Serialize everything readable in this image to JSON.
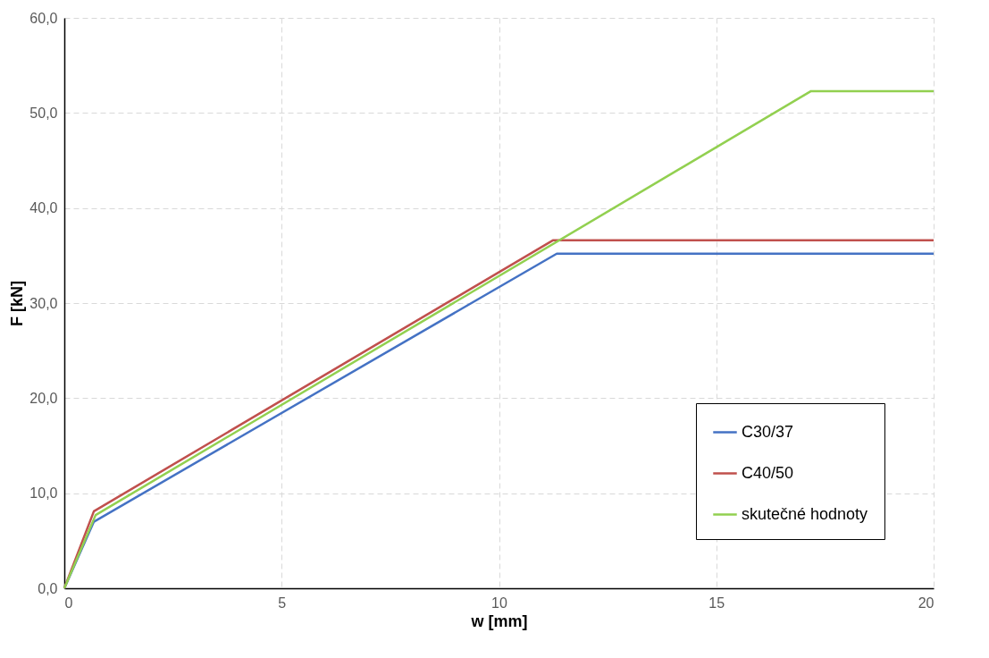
{
  "chart_data": {
    "type": "line",
    "xlabel": "w [mm]",
    "ylabel": "F [kN]",
    "xlim": [
      0,
      20
    ],
    "xticks": [
      0,
      5,
      10,
      15,
      20
    ],
    "ylim": [
      0,
      60
    ],
    "yticks": [
      {
        "value": 0,
        "label": "0,0"
      },
      {
        "value": 10,
        "label": "10,0"
      },
      {
        "value": 20,
        "label": "20,0"
      },
      {
        "value": 30,
        "label": "30,0"
      },
      {
        "value": 40,
        "label": "40,0"
      },
      {
        "value": 50,
        "label": "50,0"
      },
      {
        "value": 60,
        "label": "60,0"
      }
    ],
    "grid": true,
    "legend": "bottom right",
    "marker": "none",
    "line_style": "solid",
    "series": [
      {
        "name": "C30/37",
        "color": "#4472c4",
        "x": [
          0,
          0.68,
          11.33,
          20
        ],
        "values": [
          0,
          7.0,
          35.2,
          35.2
        ]
      },
      {
        "name": "C40/50",
        "color": "#c0504d",
        "x": [
          0,
          0.68,
          11.24,
          20
        ],
        "values": [
          0,
          8.1,
          36.6,
          36.6
        ]
      },
      {
        "name": "skutečné hodnoty",
        "color": "#92d050",
        "x": [
          0,
          0.72,
          17.18,
          20
        ],
        "values": [
          0,
          7.7,
          52.3,
          52.3
        ]
      }
    ]
  }
}
